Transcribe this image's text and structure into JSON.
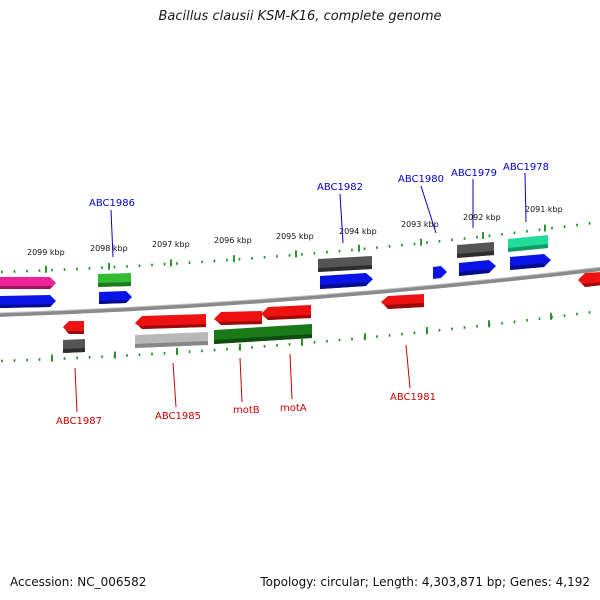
{
  "title": "Bacillus clausii KSM-K16, complete genome",
  "footer": {
    "accession": "Accession: NC_006582",
    "topology": "Topology: circular; Length: 4,303,871 bp; Genes: 4,192"
  },
  "scale": {
    "labels": [
      "2099 kbp",
      "2098 kbp",
      "2097 kbp",
      "2096 kbp",
      "2095 kbp",
      "2094 kbp",
      "2093 kbp",
      "2092 kbp",
      "2091 kbp"
    ]
  },
  "colors": {
    "tick": "#1a8c1a",
    "backbone": "#8a8a8a",
    "label_forward": "#0000cc",
    "label_reverse": "#cc0000",
    "red": "#ee1111",
    "blue": "#0a14e6",
    "green": "#33bb33",
    "dark_green": "#1a7a1a",
    "gray": "#555555",
    "light_gray": "#b8b8b8",
    "magenta": "#ee2299",
    "mint": "#22dd99"
  },
  "labels": {
    "forward": [
      "ABC1986",
      "ABC1982",
      "ABC1980",
      "ABC1979",
      "ABC1978"
    ],
    "reverse": [
      "ABC1987",
      "ABC1985",
      "motB",
      "motA",
      "ABC1981"
    ]
  }
}
